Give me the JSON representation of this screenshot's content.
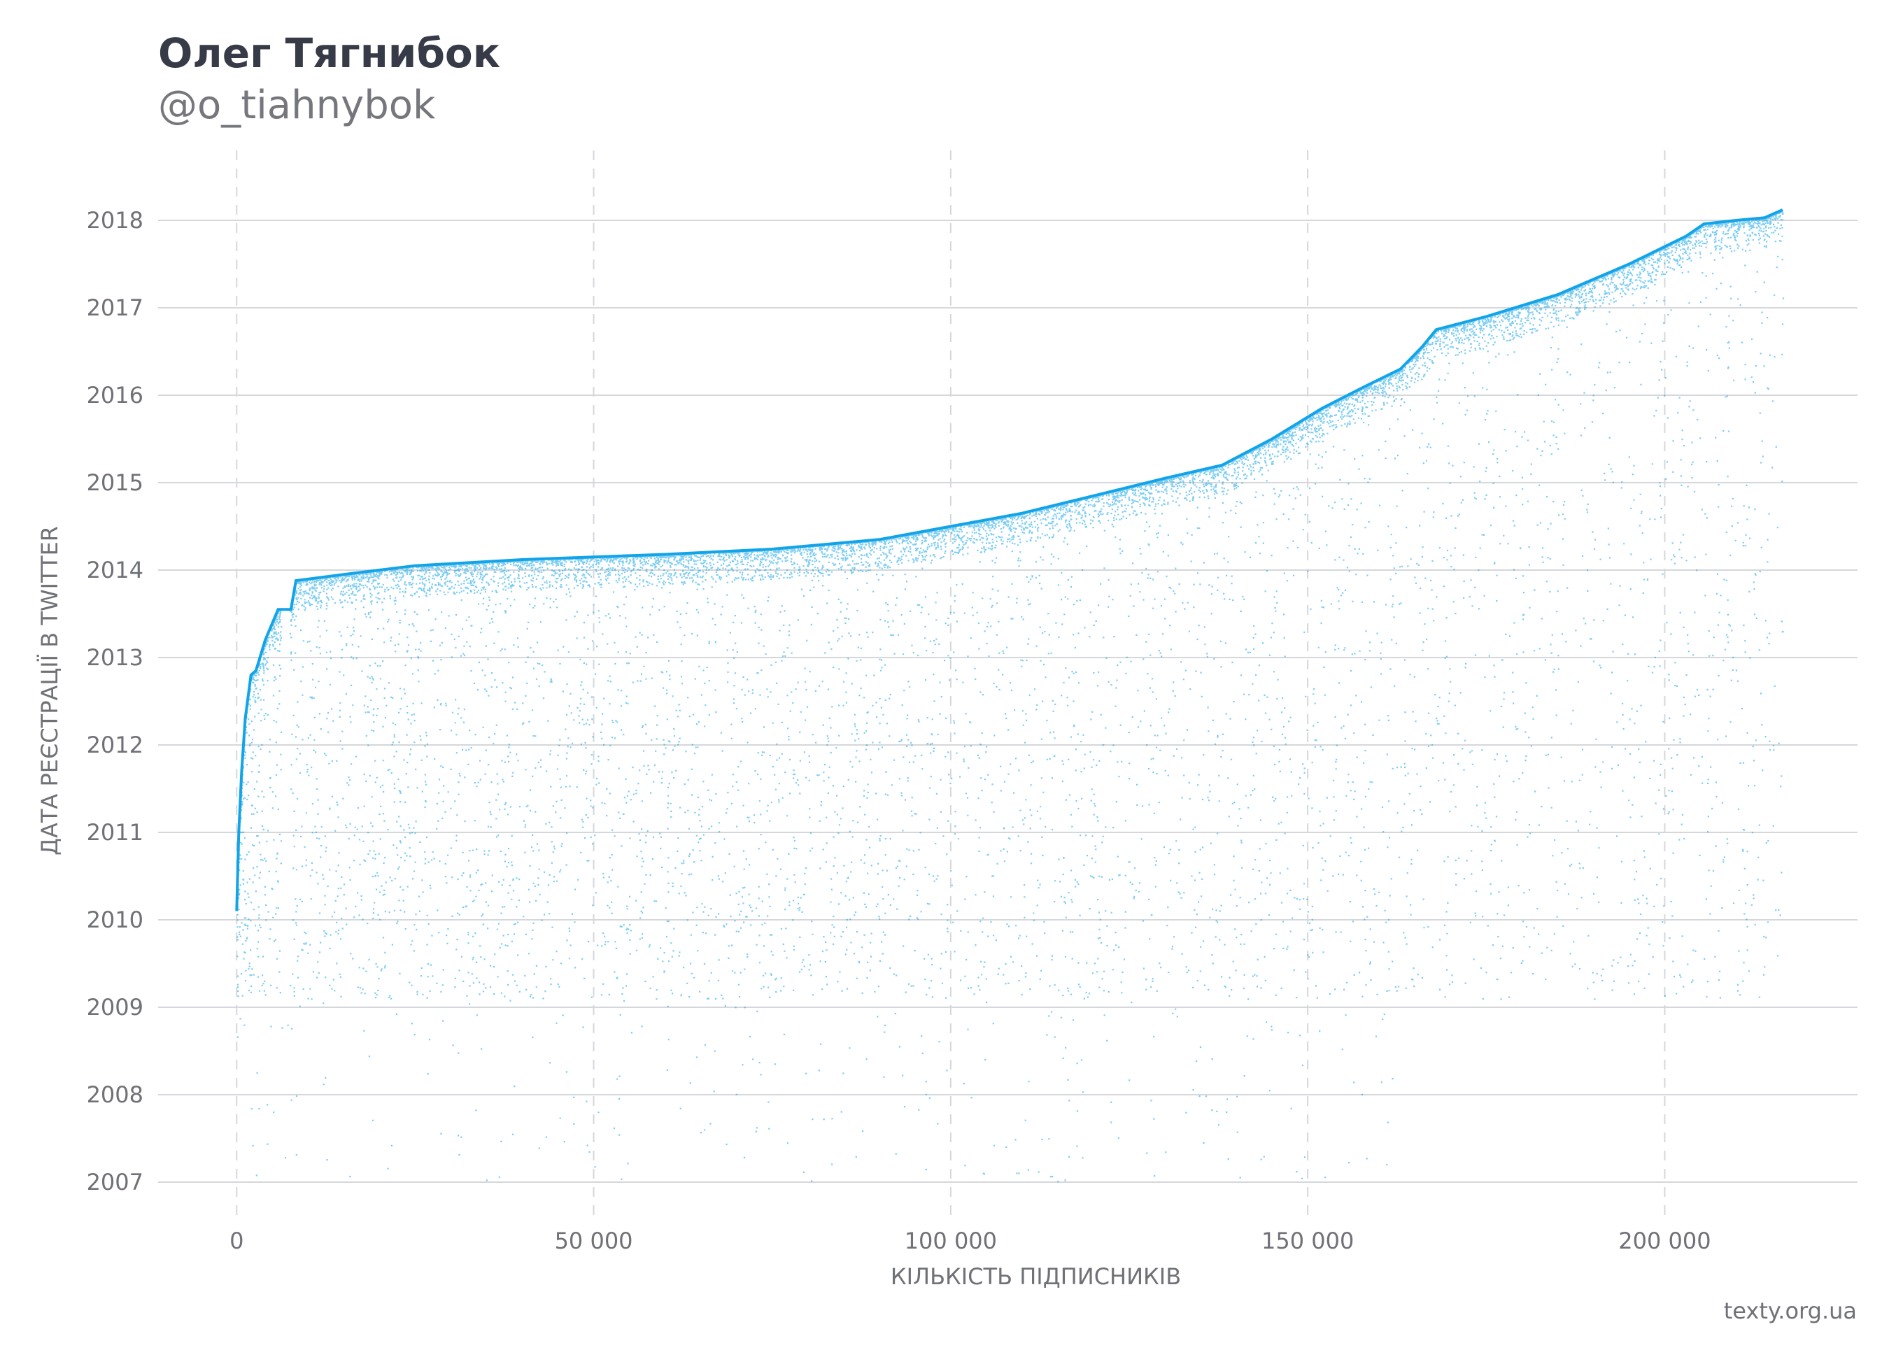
{
  "header": {
    "title": "Олег Тягнибок",
    "subtitle": "@o_tiahnybok"
  },
  "footer": {
    "source": "texty.org.ua"
  },
  "colors": {
    "points": "#12a4e8",
    "grid": "#d5d7da",
    "text": "#6f7177"
  },
  "chart_data": {
    "type": "scatter",
    "title": "Олег Тягнибок",
    "subtitle": "@o_tiahnybok",
    "xlabel": "КІЛЬКІСТЬ ПІДПИСНИКІВ",
    "ylabel": "ДАТА РЕЄСТРАЦІЇ В TWITTER",
    "xlim": [
      -11000,
      227000
    ],
    "ylim": [
      2006.6,
      2018.8
    ],
    "x_ticks": [
      0,
      50000,
      100000,
      150000,
      200000
    ],
    "x_tick_labels": [
      "0",
      "50 000",
      "100 000",
      "150 000",
      "200 000"
    ],
    "y_ticks": [
      2007,
      2008,
      2009,
      2010,
      2011,
      2012,
      2013,
      2014,
      2015,
      2016,
      2017,
      2018
    ],
    "y_tick_labels": [
      "2007",
      "2008",
      "2009",
      "2010",
      "2011",
      "2012",
      "2013",
      "2014",
      "2015",
      "2016",
      "2017",
      "2018"
    ],
    "grid": {
      "x": "dashed",
      "y": "solid"
    },
    "legend": "none",
    "series": [
      {
        "upper_envelope": [
          [
            0,
            2010.1
          ],
          [
            300,
            2011.0
          ],
          [
            700,
            2011.7
          ],
          [
            1200,
            2012.3
          ],
          [
            2000,
            2012.8
          ],
          [
            2700,
            2012.85
          ],
          [
            4000,
            2013.2
          ],
          [
            5800,
            2013.55
          ],
          [
            7600,
            2013.55
          ],
          [
            8300,
            2013.88
          ],
          [
            15000,
            2013.95
          ],
          [
            25000,
            2014.05
          ],
          [
            40000,
            2014.12
          ],
          [
            60000,
            2014.18
          ],
          [
            75000,
            2014.24
          ],
          [
            90000,
            2014.35
          ],
          [
            100000,
            2014.5
          ],
          [
            110000,
            2014.65
          ],
          [
            120000,
            2014.85
          ],
          [
            130000,
            2015.05
          ],
          [
            138000,
            2015.2
          ],
          [
            145000,
            2015.5
          ],
          [
            152000,
            2015.85
          ],
          [
            158000,
            2016.1
          ],
          [
            163000,
            2016.3
          ],
          [
            166000,
            2016.55
          ],
          [
            168000,
            2016.75
          ],
          [
            175000,
            2016.9
          ],
          [
            185000,
            2017.15
          ],
          [
            195000,
            2017.5
          ],
          [
            203000,
            2017.82
          ],
          [
            205500,
            2017.96
          ],
          [
            210000,
            2018.0
          ],
          [
            214000,
            2018.03
          ],
          [
            216500,
            2018.12
          ]
        ],
        "date_floor": 2009.1,
        "x_max": 216500
      }
    ]
  }
}
